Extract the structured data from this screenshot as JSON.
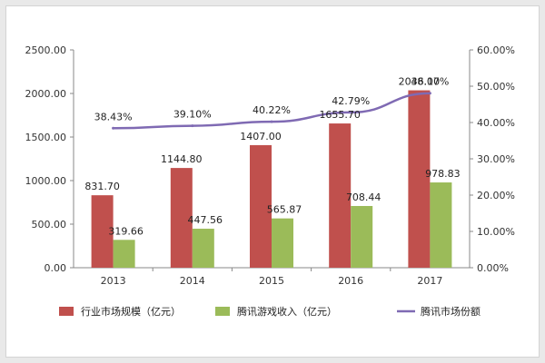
{
  "chart_data": {
    "type": "bar",
    "categories": [
      "2013",
      "2014",
      "2015",
      "2016",
      "2017"
    ],
    "series": [
      {
        "name": "行业市场规模（亿元）",
        "type": "bar",
        "axis": "left",
        "color": "#c0504d",
        "values": [
          831.7,
          1144.8,
          1407.0,
          1655.7,
          2036.1
        ],
        "labels": [
          "831.70",
          "1144.80",
          "1407.00",
          "1655.70",
          "2036.10"
        ]
      },
      {
        "name": "腾讯游戏收入（亿元）",
        "type": "bar",
        "axis": "left",
        "color": "#9bbb59",
        "values": [
          319.66,
          447.56,
          565.87,
          708.44,
          978.83
        ],
        "labels": [
          "319.66",
          "447.56",
          "565.87",
          "708.44",
          "978.83"
        ]
      },
      {
        "name": "腾讯市场份额",
        "type": "line",
        "axis": "right",
        "color": "#7f6ab3",
        "values": [
          38.43,
          39.1,
          40.22,
          42.79,
          48.07
        ],
        "labels": [
          "38.43%",
          "39.10%",
          "40.22%",
          "42.79%",
          "48.07%"
        ]
      }
    ],
    "y_left": {
      "min": 0,
      "max": 2500,
      "ticks": [
        "0.00",
        "500.00",
        "1000.00",
        "1500.00",
        "2000.00",
        "2500.00"
      ]
    },
    "y_right": {
      "min": 0,
      "max": 60,
      "ticks": [
        "0.00%",
        "10.00%",
        "20.00%",
        "30.00%",
        "40.00%",
        "50.00%",
        "60.00%"
      ]
    },
    "grid": false,
    "legend": "bottom"
  }
}
